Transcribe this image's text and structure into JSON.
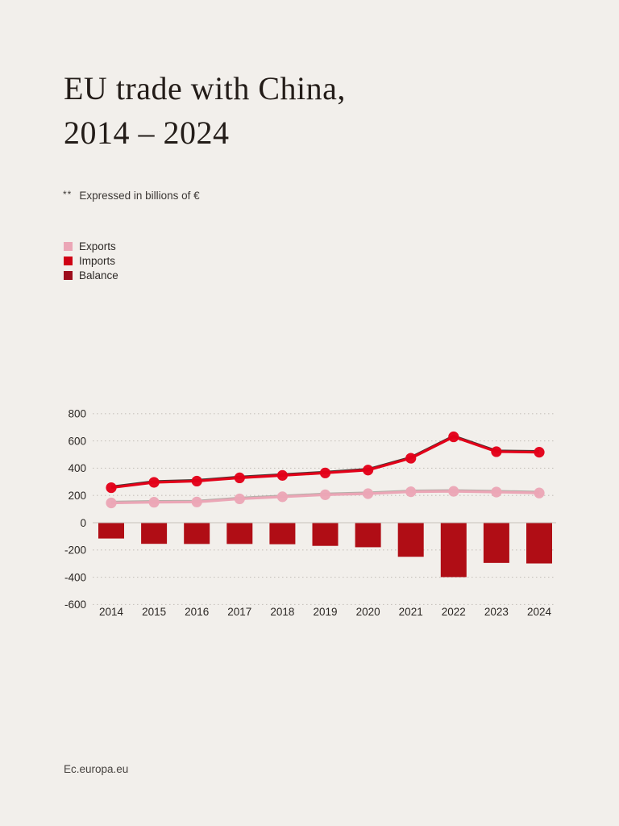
{
  "page": {
    "title_line1": "EU trade with China,",
    "title_line2": "2014 – 2024",
    "note_marker": "**",
    "note_text": "Expressed in billions of €",
    "footer": "Ec.europa.eu"
  },
  "legend": [
    {
      "label": "Exports",
      "color": "#eba6b6"
    },
    {
      "label": "Imports",
      "color": "#cf0014"
    },
    {
      "label": "Balance",
      "color": "#9d0d1c"
    }
  ],
  "chart_data": {
    "type": "line+bar",
    "title": "EU trade with China, 2014 – 2024 (billions of €)",
    "categories": [
      "2014",
      "2015",
      "2016",
      "2017",
      "2018",
      "2019",
      "2020",
      "2021",
      "2022",
      "2023",
      "2024"
    ],
    "series": [
      {
        "name": "Exports",
        "type": "line",
        "color": "#eba6b6",
        "shadow_color": "#a8a19b",
        "values": [
          145,
          150,
          152,
          175,
          190,
          205,
          213,
          227,
          230,
          225,
          218
        ]
      },
      {
        "name": "Imports",
        "type": "line",
        "color": "#e30019",
        "shadow_color": "#2a1512",
        "values": [
          257,
          296,
          305,
          329,
          347,
          365,
          386,
          473,
          630,
          521,
          517
        ]
      },
      {
        "name": "Balance",
        "type": "bar",
        "color": "#b00d15",
        "values": [
          -113,
          -152,
          -153,
          -153,
          -155,
          -167,
          -177,
          -247,
          -396,
          -292,
          -296
        ]
      }
    ],
    "xlabel": "",
    "ylabel": "",
    "ylim": [
      -600,
      800
    ],
    "yticks": [
      800,
      600,
      400,
      200,
      0,
      -200,
      -400,
      -600
    ],
    "grid": "dotted horizontal, solid zero line",
    "legend_position": "above chart, top-left",
    "colors": {
      "background": "#f2efeb",
      "gridline": "#c7c2bc",
      "zero_line": "#c5c0ba"
    }
  }
}
